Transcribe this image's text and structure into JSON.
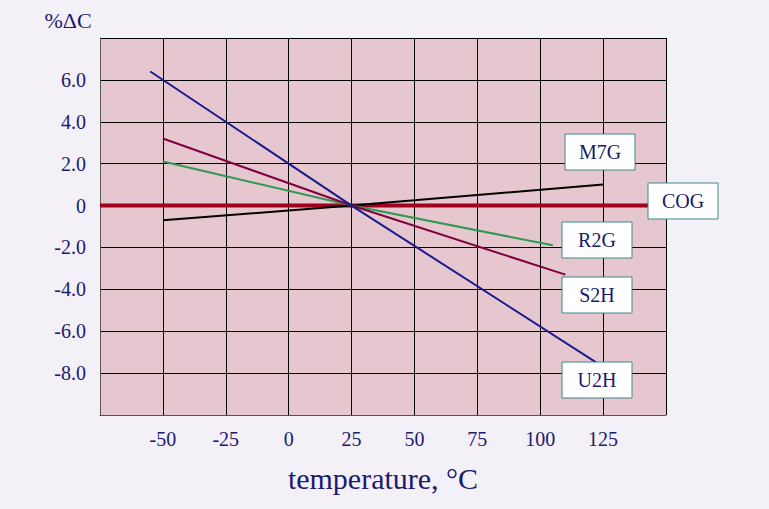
{
  "chart_data": {
    "type": "line",
    "xlabel": "temperature, °C",
    "ylabel": "%ΔC",
    "xlim": [
      -75,
      150
    ],
    "xticks": [
      -50,
      -25,
      0,
      25,
      50,
      75,
      100,
      125
    ],
    "ylim": [
      -10,
      8
    ],
    "yticks": [
      {
        "value": 6,
        "label": "6.0"
      },
      {
        "value": 4,
        "label": "4.0"
      },
      {
        "value": 2,
        "label": "2.0"
      },
      0,
      {
        "value": -2,
        "label": "-2.0"
      },
      {
        "value": -4,
        "label": "-4.0"
      },
      {
        "value": -6,
        "label": "-6.0"
      },
      {
        "value": -8,
        "label": "-8.0"
      }
    ],
    "grid": true,
    "series": [
      {
        "name": "M7G",
        "color": "#000000",
        "x": [
          -50,
          25,
          125
        ],
        "values": [
          -0.7,
          0,
          1.0
        ]
      },
      {
        "name": "COG",
        "color": "#a0001e",
        "x": [
          -75,
          145
        ],
        "values": [
          0,
          0
        ]
      },
      {
        "name": "R2G",
        "color": "#2e9950",
        "x": [
          -50,
          25,
          105
        ],
        "values": [
          2.1,
          0,
          -1.9
        ]
      },
      {
        "name": "S2H",
        "color": "#800040",
        "x": [
          -50,
          25,
          110
        ],
        "values": [
          3.2,
          0,
          -3.3
        ]
      },
      {
        "name": "U2H",
        "color": "#1a1a8c",
        "x": [
          -55,
          25,
          125
        ],
        "values": [
          6.4,
          0,
          -7.7
        ]
      }
    ]
  }
}
